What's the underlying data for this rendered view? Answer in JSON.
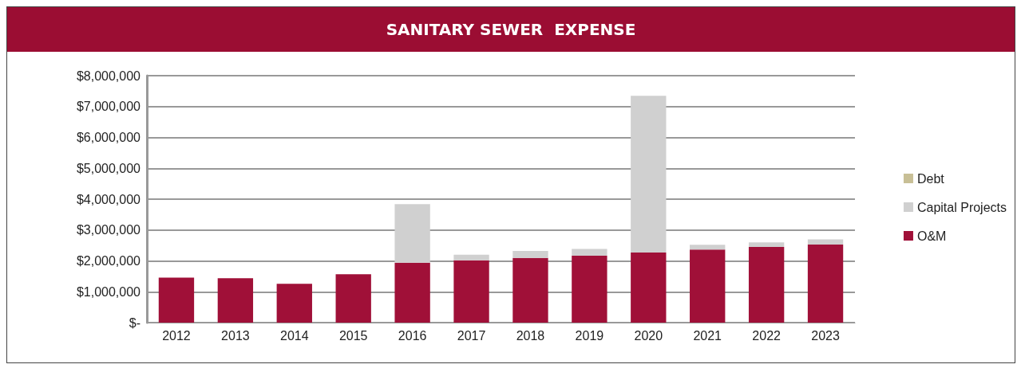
{
  "chart_data": {
    "type": "bar",
    "title": "SANITARY SEWER  EXPENSE",
    "stacked": true,
    "categories": [
      "2012",
      "2013",
      "2014",
      "2015",
      "2016",
      "2017",
      "2018",
      "2019",
      "2020",
      "2021",
      "2022",
      "2023"
    ],
    "series": [
      {
        "name": "O&M",
        "color": "#a01038",
        "values": [
          1460000,
          1440000,
          1260000,
          1570000,
          1940000,
          2020000,
          2100000,
          2170000,
          2270000,
          2370000,
          2450000,
          2530000
        ]
      },
      {
        "name": "Capital Projects",
        "color": "#d0d0d0",
        "values": [
          0,
          0,
          0,
          0,
          1900000,
          180000,
          220000,
          220000,
          5080000,
          150000,
          150000,
          170000
        ]
      },
      {
        "name": "Debt",
        "color": "#c8bf96",
        "values": [
          null,
          null,
          null,
          null,
          null,
          null,
          null,
          null,
          null,
          null,
          null,
          null
        ]
      }
    ],
    "ylim": [
      0,
      8000000
    ],
    "yticks": [
      {
        "value": 0,
        "label": "$-"
      },
      {
        "value": 1000000,
        "label": "$1,000,000"
      },
      {
        "value": 2000000,
        "label": "$2,000,000"
      },
      {
        "value": 3000000,
        "label": "$3,000,000"
      },
      {
        "value": 4000000,
        "label": "$4,000,000"
      },
      {
        "value": 5000000,
        "label": "$5,000,000"
      },
      {
        "value": 6000000,
        "label": "$6,000,000"
      },
      {
        "value": 7000000,
        "label": "$7,000,000"
      },
      {
        "value": 8000000,
        "label": "$8,000,000"
      }
    ],
    "grid": "y",
    "legend": "right"
  }
}
